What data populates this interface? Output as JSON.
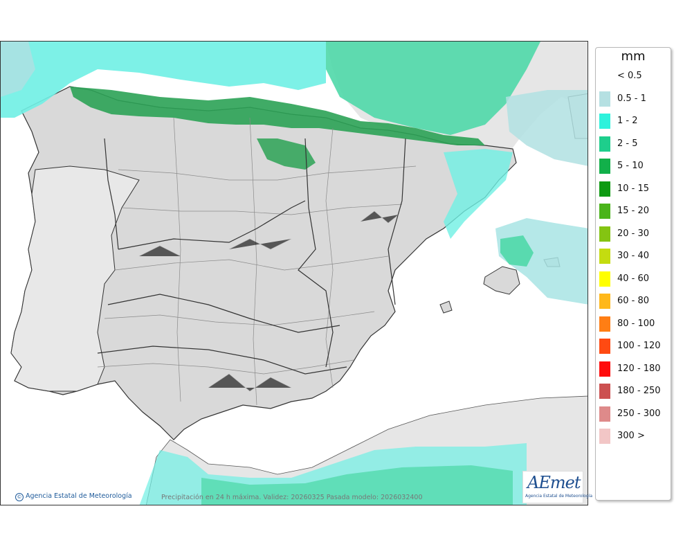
{
  "legend": {
    "unit": "mm",
    "items": [
      {
        "label": "< 0.5",
        "color": "#ffffff"
      },
      {
        "label": "0.5 - 1",
        "color": "#b5e0e2"
      },
      {
        "label": "1 - 2",
        "color": "#2ef2dc"
      },
      {
        "label": "2 - 5",
        "color": "#1ece8c"
      },
      {
        "label": "5 - 10",
        "color": "#12b04a"
      },
      {
        "label": "10 - 15",
        "color": "#0e9a12"
      },
      {
        "label": "15 - 20",
        "color": "#4ab41a"
      },
      {
        "label": "20 - 30",
        "color": "#84c412"
      },
      {
        "label": "30 - 40",
        "color": "#c4dc10"
      },
      {
        "label": "40 - 60",
        "color": "#ffff00"
      },
      {
        "label": "60 - 80",
        "color": "#ffb81a"
      },
      {
        "label": "80 - 100",
        "color": "#ff7e14"
      },
      {
        "label": "100 - 120",
        "color": "#ff4a12"
      },
      {
        "label": "120 - 180",
        "color": "#ff0c0c"
      },
      {
        "label": "180 - 250",
        "color": "#cc5050"
      },
      {
        "label": "250 - 300",
        "color": "#de8a8a"
      },
      {
        "label": "300 >",
        "color": "#f2c6c6"
      }
    ]
  },
  "footer": {
    "credit": "Agencia Estatal de Meteorología",
    "credit_icon": "©",
    "caption": "Precipitación en 24 h máxima. Validez: 20260325 Pasada modelo: 2026032400"
  },
  "logo": {
    "mark": "AEmet",
    "text": "Agencia Estatal de Meteorología"
  },
  "colors": {
    "land": "#d9d9d9",
    "sea": "#ffffff",
    "borders": "#333333",
    "provinces": "#8a8a8a"
  }
}
